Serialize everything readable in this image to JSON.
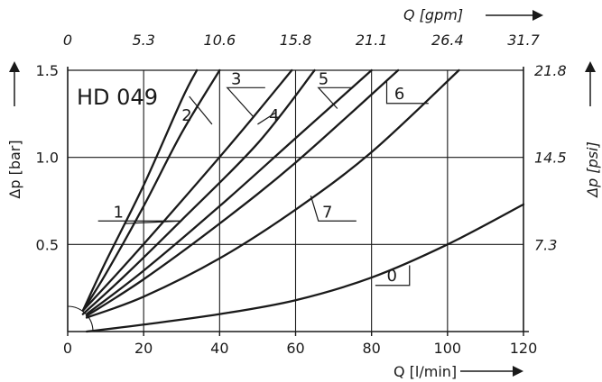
{
  "chart_data": {
    "type": "line",
    "title": "HD 049",
    "xlabel": "Q [l/min]",
    "ylabel": "Δp [bar]",
    "x2label": "Q [gpm]",
    "y2label": "Δp [psi]",
    "xlim": [
      0,
      120
    ],
    "ylim": [
      0,
      1.5
    ],
    "grid": true,
    "x_ticks": [
      "0",
      "20",
      "40",
      "60",
      "80",
      "100",
      "120"
    ],
    "y_ticks": [
      "0.5",
      "1.0",
      "1.5"
    ],
    "x2_ticks": [
      "0",
      "5.3",
      "10.6",
      "15.8",
      "21.1",
      "26.4",
      "31.7"
    ],
    "y2_ticks": [
      "7.3",
      "14.5",
      "21.8"
    ],
    "series": [
      {
        "name": "0",
        "x": [
          5,
          20,
          40,
          60,
          80,
          100,
          120
        ],
        "y": [
          0,
          0.04,
          0.1,
          0.18,
          0.31,
          0.5,
          0.73
        ]
      },
      {
        "name": "1",
        "x": [
          4,
          10,
          20,
          30,
          34
        ],
        "y": [
          0.12,
          0.4,
          0.84,
          1.33,
          1.5
        ]
      },
      {
        "name": "2",
        "x": [
          4,
          10,
          20,
          30,
          40
        ],
        "y": [
          0.12,
          0.33,
          0.72,
          1.14,
          1.5
        ]
      },
      {
        "name": "3",
        "x": [
          4,
          15,
          30,
          45,
          59
        ],
        "y": [
          0.12,
          0.38,
          0.75,
          1.13,
          1.5
        ]
      },
      {
        "name": "4",
        "x": [
          4,
          15,
          30,
          50,
          65
        ],
        "y": [
          0.1,
          0.32,
          0.64,
          1.08,
          1.5
        ]
      },
      {
        "name": "5",
        "x": [
          5,
          20,
          40,
          60,
          80
        ],
        "y": [
          0.1,
          0.35,
          0.72,
          1.11,
          1.5
        ]
      },
      {
        "name": "6",
        "x": [
          5,
          20,
          40,
          60,
          87
        ],
        "y": [
          0.09,
          0.3,
          0.62,
          0.97,
          1.5
        ]
      },
      {
        "name": "7",
        "x": [
          5,
          20,
          40,
          60,
          80,
          103
        ],
        "y": [
          0.08,
          0.2,
          0.42,
          0.7,
          1.03,
          1.5
        ]
      }
    ]
  },
  "arrow_glyph": "⟶"
}
